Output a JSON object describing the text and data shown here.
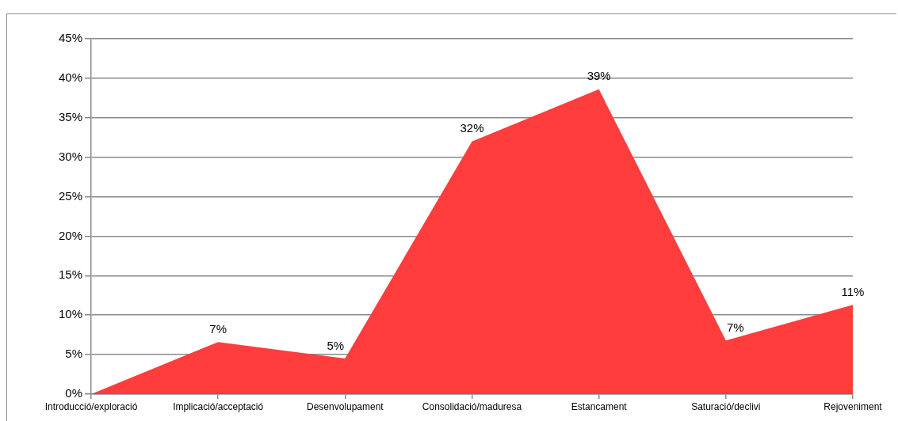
{
  "chart_data": {
    "type": "area",
    "categories": [
      "Introducció/exploració",
      "Implicació/acceptació",
      "Desenvolupament",
      "Consolidació/maduresa",
      "Estancament",
      "Saturació/declivi",
      "Rejoveniment"
    ],
    "values": [
      0,
      6.6,
      4.5,
      32.0,
      38.6,
      6.8,
      11.3
    ],
    "value_labels": [
      null,
      "7%",
      "5%",
      "32%",
      "39%",
      "7%",
      "11%"
    ],
    "color": "#ff3d3d",
    "ylim": [
      0,
      45
    ],
    "yticks": [
      {
        "value": 0,
        "label": "0%"
      },
      {
        "value": 5,
        "label": "5%"
      },
      {
        "value": 10,
        "label": "10%"
      },
      {
        "value": 15,
        "label": "15%"
      },
      {
        "value": 20,
        "label": "20%"
      },
      {
        "value": 25,
        "label": "25%"
      },
      {
        "value": 30,
        "label": "30%"
      },
      {
        "value": 35,
        "label": "35%"
      },
      {
        "value": 40,
        "label": "40%"
      },
      {
        "value": 45,
        "label": "45%"
      }
    ],
    "grid": "y"
  }
}
